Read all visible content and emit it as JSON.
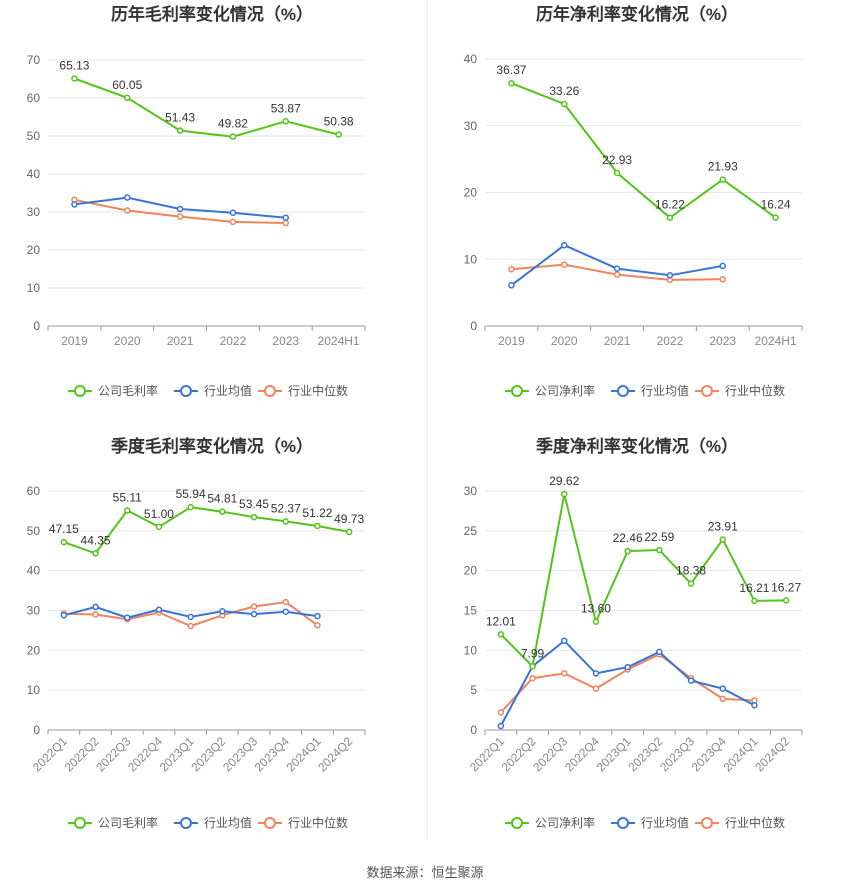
{
  "colors": {
    "company": "#52c41a",
    "avg": "#3874d8",
    "median": "#f0845c",
    "grid": "#e6e6e6",
    "axis": "#999999"
  },
  "source_text": "数据来源：恒生聚源",
  "chart_data": [
    {
      "type": "line",
      "title": "历年毛利率变化情况（%）",
      "categories": [
        "2019",
        "2020",
        "2021",
        "2022",
        "2023",
        "2024H1"
      ],
      "ylim": [
        0,
        70
      ],
      "yticks": [
        0,
        10,
        20,
        30,
        40,
        50,
        60,
        70
      ],
      "rotate_x": false,
      "series": [
        {
          "name": "公司毛利率",
          "color": "#52c41a",
          "labels": true,
          "values": [
            65.13,
            60.05,
            51.43,
            49.82,
            53.87,
            50.38
          ],
          "value_labels": [
            "65.13",
            "60.05",
            "51.43",
            "49.82",
            "53.87",
            "50.38"
          ]
        },
        {
          "name": "行业均值",
          "color": "#3874d8",
          "labels": false,
          "values": [
            32.0,
            33.8,
            30.8,
            29.8,
            28.5,
            null
          ]
        },
        {
          "name": "行业中位数",
          "color": "#f0845c",
          "labels": false,
          "values": [
            33.2,
            30.4,
            28.8,
            27.4,
            27.1,
            null
          ]
        }
      ],
      "legend": [
        "公司毛利率",
        "行业均值",
        "行业中位数"
      ],
      "legend_position": "bottom"
    },
    {
      "type": "line",
      "title": "历年净利率变化情况（%）",
      "categories": [
        "2019",
        "2020",
        "2021",
        "2022",
        "2023",
        "2024H1"
      ],
      "ylim": [
        0,
        40
      ],
      "yticks": [
        0,
        10,
        20,
        30,
        40
      ],
      "rotate_x": false,
      "series": [
        {
          "name": "公司净利率",
          "color": "#52c41a",
          "labels": true,
          "values": [
            36.37,
            33.26,
            22.93,
            16.22,
            21.93,
            16.24
          ],
          "value_labels": [
            "36.37",
            "33.26",
            "22.93",
            "16.22",
            "21.93",
            "16.24"
          ]
        },
        {
          "name": "行业均值",
          "color": "#3874d8",
          "labels": false,
          "values": [
            6.1,
            12.1,
            8.6,
            7.6,
            9.0,
            null
          ]
        },
        {
          "name": "行业中位数",
          "color": "#f0845c",
          "labels": false,
          "values": [
            8.5,
            9.2,
            7.7,
            6.9,
            7.0,
            null
          ]
        }
      ],
      "legend": [
        "公司净利率",
        "行业均值",
        "行业中位数"
      ],
      "legend_position": "bottom"
    },
    {
      "type": "line",
      "title": "季度毛利率变化情况（%）",
      "categories": [
        "2022Q1",
        "2022Q2",
        "2022Q3",
        "2022Q4",
        "2023Q1",
        "2023Q2",
        "2023Q3",
        "2023Q4",
        "2024Q1",
        "2024Q2"
      ],
      "ylim": [
        0,
        60
      ],
      "yticks": [
        0,
        10,
        20,
        30,
        40,
        50,
        60
      ],
      "rotate_x": true,
      "series": [
        {
          "name": "公司毛利率",
          "color": "#52c41a",
          "labels": true,
          "values": [
            47.15,
            44.35,
            55.11,
            51.0,
            55.94,
            54.81,
            53.45,
            52.37,
            51.22,
            49.73
          ],
          "value_labels": [
            "47.15",
            "44.35",
            "55.11",
            "51.00",
            "55.94",
            "54.81",
            "53.45",
            "52.37",
            "51.22",
            "49.73"
          ]
        },
        {
          "name": "行业均值",
          "color": "#3874d8",
          "labels": false,
          "values": [
            28.8,
            30.9,
            28.2,
            30.2,
            28.4,
            29.8,
            29.1,
            29.7,
            28.6,
            null
          ]
        },
        {
          "name": "行业中位数",
          "color": "#f0845c",
          "labels": false,
          "values": [
            29.2,
            29.0,
            27.8,
            29.5,
            26.1,
            28.8,
            31.0,
            32.1,
            26.3,
            null
          ]
        }
      ],
      "legend": [
        "公司毛利率",
        "行业均值",
        "行业中位数"
      ],
      "legend_position": "bottom"
    },
    {
      "type": "line",
      "title": "季度净利率变化情况（%）",
      "categories": [
        "2022Q1",
        "2022Q2",
        "2022Q3",
        "2022Q4",
        "2023Q1",
        "2023Q2",
        "2023Q3",
        "2023Q4",
        "2024Q1",
        "2024Q2"
      ],
      "ylim": [
        0,
        30
      ],
      "yticks": [
        0,
        5,
        10,
        15,
        20,
        25,
        30
      ],
      "rotate_x": true,
      "series": [
        {
          "name": "公司净利率",
          "color": "#52c41a",
          "labels": true,
          "values": [
            12.01,
            7.99,
            29.62,
            13.6,
            22.46,
            22.59,
            18.38,
            23.91,
            16.21,
            16.27
          ],
          "value_labels": [
            "12.01",
            "7.99",
            "29.62",
            "13.60",
            "22.46",
            "22.59",
            "18.38",
            "23.91",
            "16.21",
            "16.27"
          ]
        },
        {
          "name": "行业均值",
          "color": "#3874d8",
          "labels": false,
          "values": [
            0.5,
            8.0,
            11.2,
            7.1,
            7.9,
            9.8,
            6.2,
            5.2,
            3.1,
            null
          ]
        },
        {
          "name": "行业中位数",
          "color": "#f0845c",
          "labels": false,
          "values": [
            2.2,
            6.5,
            7.1,
            5.2,
            7.6,
            9.5,
            6.5,
            3.9,
            3.7,
            null
          ]
        }
      ],
      "legend": [
        "公司净利率",
        "行业均值",
        "行业中位数"
      ],
      "legend_position": "bottom"
    }
  ]
}
